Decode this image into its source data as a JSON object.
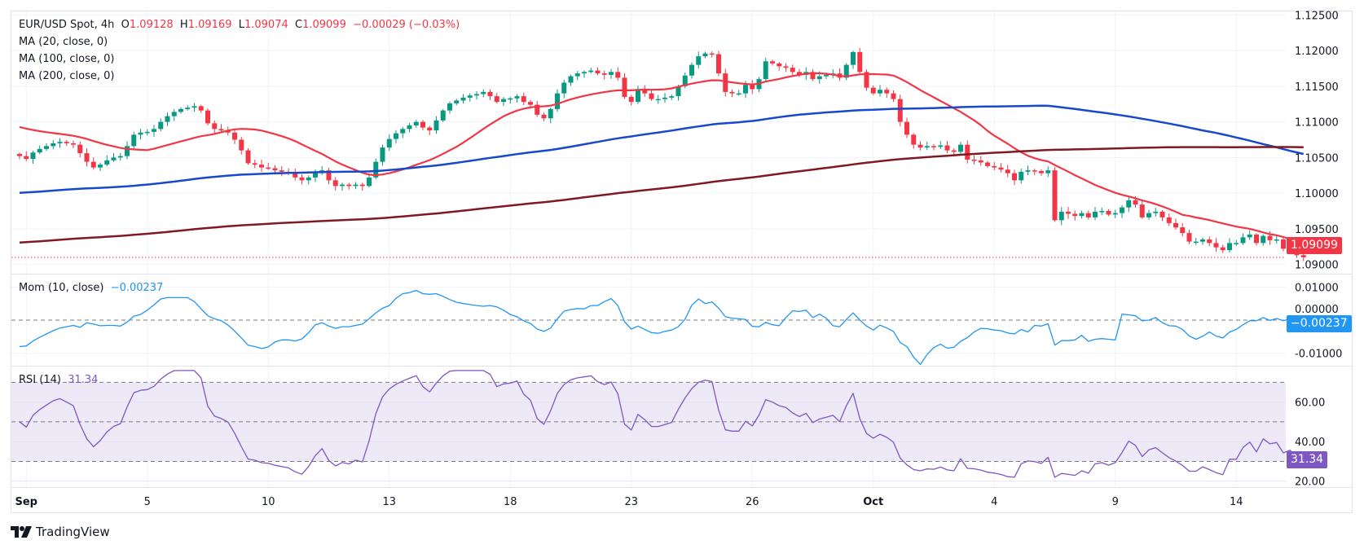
{
  "header": {
    "symbol": "EUR/USD Spot, 4h",
    "open_label": "O",
    "open": "1.09128",
    "high_label": "H",
    "high": "1.09169",
    "low_label": "L",
    "low": "1.09074",
    "close_label": "C",
    "close": "1.09099",
    "change": "−0.00029 (−0.03%)"
  },
  "indicators": {
    "ma20": "MA (20, close, 0)",
    "ma100": "MA (100, close, 0)",
    "ma200": "MA (200, close, 0)",
    "mom_label": "Mom (10, close)",
    "mom_value": "−0.00237",
    "rsi_label": "RSI (14)",
    "rsi_value": "31.34"
  },
  "badges": {
    "price": "1.09099",
    "mom": "−0.00237",
    "rsi": "31.34"
  },
  "branding": {
    "name": "TradingView"
  },
  "colors": {
    "up": "#089981",
    "down": "#f23645",
    "ma20": "#f23645",
    "ma100": "#1848cc",
    "ma200": "#801922",
    "mom": "#2196f3",
    "rsi": "#7e57c2",
    "rsi_band": "#ede9f7",
    "grid": "#f0f3fa"
  },
  "chart_data": [
    {
      "type": "candlestick",
      "title": "EUR/USD Spot, 4h",
      "x_ticks": [
        {
          "label": "Sep",
          "bar": 1,
          "bold": true
        },
        {
          "label": "5",
          "bar": 19
        },
        {
          "label": "10",
          "bar": 37
        },
        {
          "label": "13",
          "bar": 55
        },
        {
          "label": "18",
          "bar": 73
        },
        {
          "label": "23",
          "bar": 91
        },
        {
          "label": "26",
          "bar": 109
        },
        {
          "label": "Oct",
          "bar": 127,
          "bold": true
        },
        {
          "label": "4",
          "bar": 145
        },
        {
          "label": "9",
          "bar": 163
        },
        {
          "label": "14",
          "bar": 181
        }
      ],
      "y_ticks": [
        "1.12500",
        "1.12000",
        "1.11500",
        "1.11000",
        "1.10500",
        "1.10000",
        "1.09500",
        "1.09000"
      ],
      "ylim": [
        1.0887,
        1.1255
      ],
      "last_price": 1.09099,
      "closes": [
        1.1052,
        1.1048,
        1.1057,
        1.1062,
        1.1066,
        1.107,
        1.1072,
        1.107,
        1.1068,
        1.1056,
        1.1044,
        1.1036,
        1.104,
        1.1046,
        1.105,
        1.1052,
        1.1066,
        1.1082,
        1.1085,
        1.1086,
        1.109,
        1.11,
        1.1108,
        1.1114,
        1.1118,
        1.112,
        1.1122,
        1.1116,
        1.1098,
        1.109,
        1.1088,
        1.1085,
        1.1075,
        1.106,
        1.1042,
        1.104,
        1.1036,
        1.1035,
        1.1032,
        1.103,
        1.1028,
        1.1022,
        1.1018,
        1.1022,
        1.1028,
        1.1032,
        1.1018,
        1.101,
        1.1012,
        1.101,
        1.1012,
        1.101,
        1.1022,
        1.1044,
        1.1064,
        1.1076,
        1.1084,
        1.109,
        1.1095,
        1.11,
        1.1092,
        1.1088,
        1.1102,
        1.1116,
        1.1126,
        1.113,
        1.1134,
        1.1137,
        1.1139,
        1.1142,
        1.1136,
        1.1128,
        1.1132,
        1.1133,
        1.1136,
        1.1128,
        1.1124,
        1.111,
        1.1105,
        1.1118,
        1.114,
        1.1155,
        1.1164,
        1.1168,
        1.117,
        1.1172,
        1.1168,
        1.1166,
        1.117,
        1.1162,
        1.1135,
        1.1128,
        1.1146,
        1.114,
        1.1132,
        1.1132,
        1.1134,
        1.1136,
        1.115,
        1.1165,
        1.118,
        1.1192,
        1.1196,
        1.1195,
        1.1168,
        1.1142,
        1.114,
        1.114,
        1.1152,
        1.1146,
        1.116,
        1.1185,
        1.1182,
        1.1178,
        1.1176,
        1.117,
        1.1166,
        1.117,
        1.116,
        1.1164,
        1.1166,
        1.1168,
        1.1162,
        1.118,
        1.1198,
        1.117,
        1.1148,
        1.114,
        1.1145,
        1.114,
        1.1132,
        1.11,
        1.1082,
        1.1068,
        1.1064,
        1.1066,
        1.1065,
        1.1067,
        1.106,
        1.1058,
        1.1068,
        1.1047,
        1.1046,
        1.1043,
        1.1038,
        1.1036,
        1.1033,
        1.1028,
        1.1018,
        1.103,
        1.1032,
        1.1031,
        1.1028,
        1.1032,
        1.0962,
        1.0974,
        1.0971,
        1.0968,
        1.0972,
        1.0966,
        1.0974,
        1.0975,
        1.097,
        1.0972,
        1.098,
        1.099,
        1.0984,
        1.0966,
        1.0972,
        1.0974,
        1.0966,
        1.0958,
        1.0952,
        1.0944,
        1.0932,
        1.0932,
        1.0935,
        1.093,
        1.0924,
        1.092,
        1.093,
        1.093,
        1.0938,
        1.0942,
        1.093,
        1.094,
        1.0934,
        1.0935,
        1.0922,
        1.0924,
        1.0913,
        1.091
      ],
      "series_labels": [
        "MA (20, close, 0)",
        "MA (100, close, 0)",
        "MA (200, close, 0)"
      ]
    },
    {
      "type": "line",
      "title": "Mom (10, close)",
      "y_ticks": [
        "0.01000",
        "0.00000",
        "-0.01000"
      ],
      "ylim": [
        -0.0138,
        0.0138
      ],
      "last_value": -0.00237
    },
    {
      "type": "line",
      "title": "RSI (14)",
      "y_ticks": [
        "60.00",
        "40.00",
        "20.00"
      ],
      "band": [
        30,
        70
      ],
      "midline": 50,
      "ylim": [
        17,
        78
      ],
      "last_value": 31.34
    }
  ]
}
